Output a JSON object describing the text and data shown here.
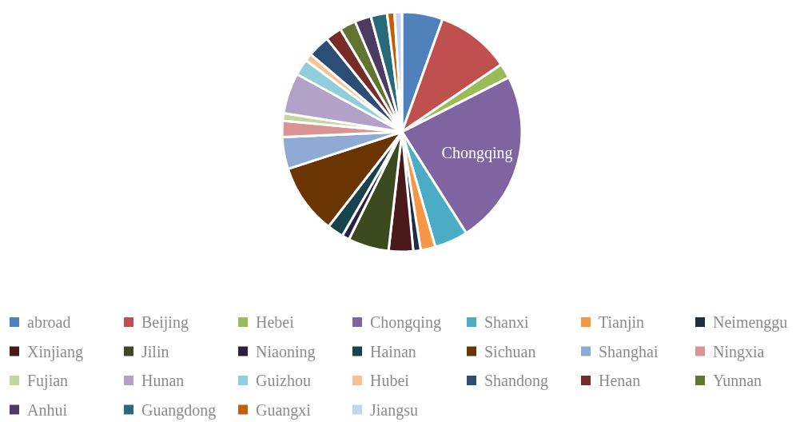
{
  "chart_data": {
    "type": "pie",
    "categories": [
      "abroad",
      "Beijing",
      "Hebei",
      "Chongqing",
      "Shanxi",
      "Tianjin",
      "Neimenggu",
      "Xinjiang",
      "Jilin",
      "Niaoning",
      "Hainan",
      "Sichuan",
      "Shanghai",
      "Ningxia",
      "Fujian",
      "Hunan",
      "Guizhou",
      "Hubei",
      "Shandong",
      "Henan",
      "Yunnan",
      "Anhui",
      "Guangdong",
      "Guangxi",
      "Jiangsu"
    ],
    "values": [
      5.5,
      10,
      2,
      23.5,
      4.5,
      2,
      1,
      3.3,
      5.5,
      1,
      2.2,
      9.5,
      4.3,
      2.2,
      1,
      5.5,
      2.2,
      1,
      3,
      2.2,
      2.2,
      2.2,
      2.2,
      1,
      1
    ],
    "colors": [
      "#4f81bd",
      "#c0504d",
      "#9bbb59",
      "#8064a2",
      "#4bacc6",
      "#f79646",
      "#1c2d44",
      "#4a1a1a",
      "#3b4a1f",
      "#2c2140",
      "#17434d",
      "#6b3503",
      "#8faad4",
      "#d99594",
      "#c3d69b",
      "#b2a2c7",
      "#92cddc",
      "#fac090",
      "#2c4d75",
      "#772c2a",
      "#5f7530",
      "#4d3b62",
      "#276a7c",
      "#c0600b",
      "#c5d6ec"
    ],
    "annotations": [
      "Chongqing"
    ],
    "legend": "bottom"
  }
}
